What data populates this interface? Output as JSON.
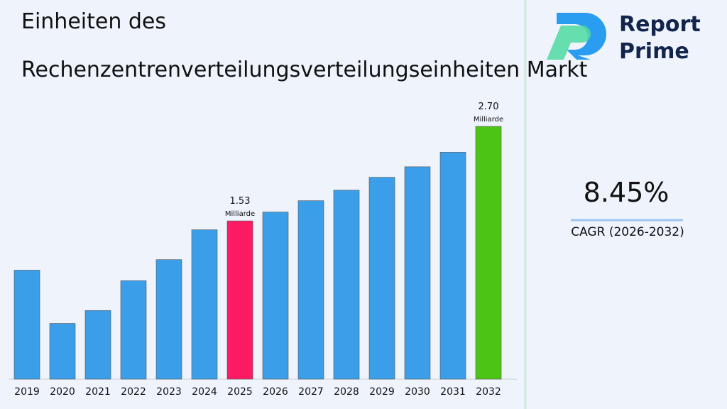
{
  "chart_data": {
    "type": "bar",
    "title": "Einheiten des Rechenzentrenverteilungsverteilungseinheiten Markt",
    "categories": [
      "2019",
      "2020",
      "2021",
      "2022",
      "2023",
      "2024",
      "2025",
      "2026",
      "2027",
      "2028",
      "2029",
      "2030",
      "2031",
      "2032"
    ],
    "values": [
      0.92,
      0.26,
      0.42,
      0.79,
      1.05,
      1.42,
      1.53,
      1.64,
      1.78,
      1.91,
      2.07,
      2.2,
      2.38,
      2.7
    ],
    "value_labels": [
      null,
      null,
      null,
      null,
      null,
      null,
      "1.53",
      null,
      null,
      null,
      null,
      null,
      null,
      "2.70"
    ],
    "unit": "Milliarde",
    "colors": [
      "#3a9fe8",
      "#3a9fe8",
      "#3a9fe8",
      "#3a9fe8",
      "#3a9fe8",
      "#3a9fe8",
      "#fc1a63",
      "#3a9fe8",
      "#3a9fe8",
      "#3a9fe8",
      "#3a9fe8",
      "#3a9fe8",
      "#3a9fe8",
      "#4cc415"
    ],
    "ylim": [
      -0.43,
      2.7
    ],
    "cagr_value": "8.45%",
    "cagr_label": "CAGR (2026-2032)",
    "brand": [
      "Report",
      "Prime"
    ]
  }
}
